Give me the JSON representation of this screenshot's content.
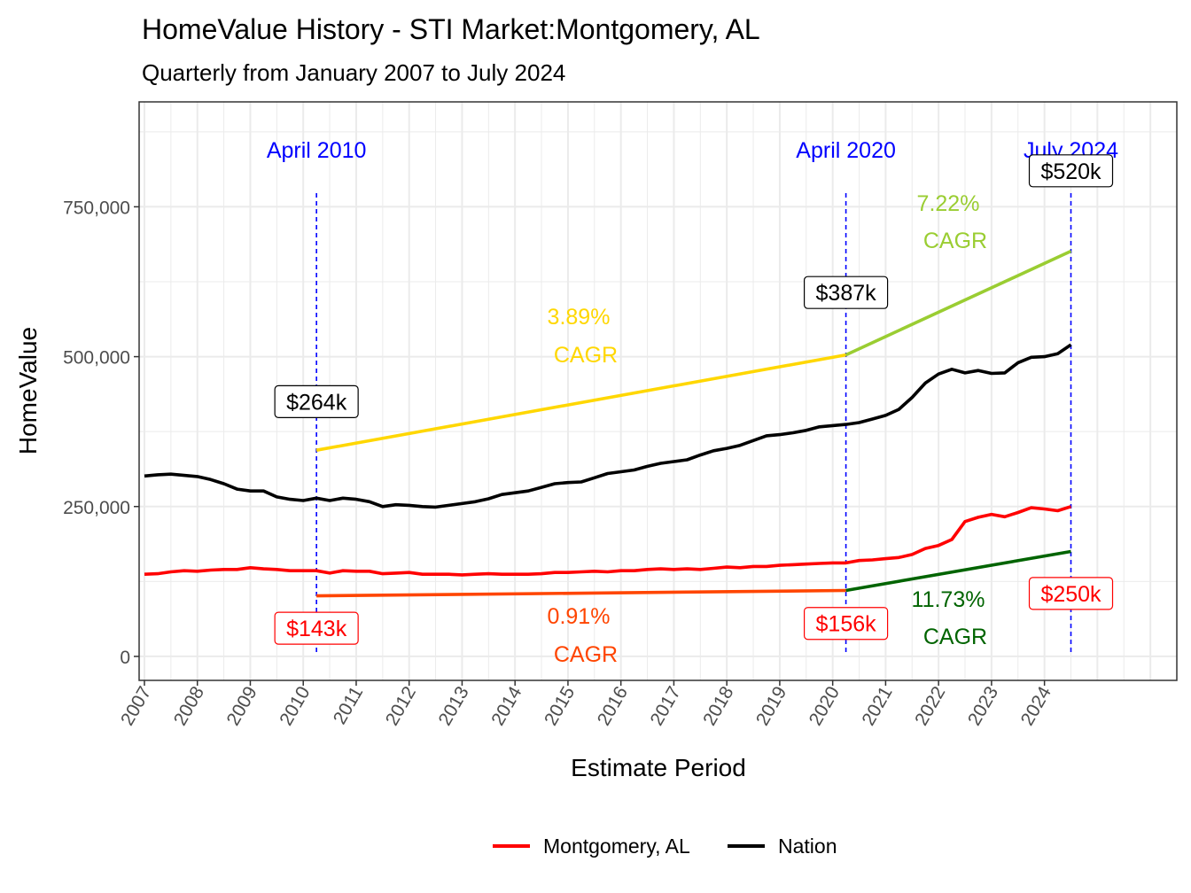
{
  "chart_data": {
    "type": "line",
    "title": "HomeValue History - STI Market:Montgomery, AL",
    "subtitle": "Quarterly from January 2007 to July 2024",
    "xlabel": "Estimate Period",
    "ylabel": "HomeValue",
    "xlim": [
      2006.9,
      2026.5
    ],
    "ylim": [
      -40000,
      925000
    ],
    "x_ticks": [
      2007,
      2008,
      2009,
      2010,
      2011,
      2012,
      2013,
      2014,
      2015,
      2016,
      2017,
      2018,
      2019,
      2020,
      2021,
      2022,
      2023,
      2024
    ],
    "x_tick_labels": [
      "2007",
      "2008",
      "2009",
      "2010",
      "2011",
      "2012",
      "2013",
      "2014",
      "2015",
      "2016",
      "2017",
      "2018",
      "2019",
      "2020",
      "2021",
      "2022",
      "2023",
      "2024"
    ],
    "y_ticks": [
      0,
      250000,
      500000,
      750000
    ],
    "y_tick_labels": [
      "0",
      "250,000",
      "500,000",
      "750,000"
    ],
    "legend_position": "bottom",
    "legend": [
      {
        "label": "Montgomery, AL",
        "color": "#ff0000"
      },
      {
        "label": "Nation",
        "color": "#000000"
      }
    ],
    "series": [
      {
        "name": "Montgomery, AL",
        "color": "#ff0000",
        "x": [
          2007.0,
          2007.25,
          2007.5,
          2007.75,
          2008.0,
          2008.25,
          2008.5,
          2008.75,
          2009.0,
          2009.25,
          2009.5,
          2009.75,
          2010.0,
          2010.25,
          2010.5,
          2010.75,
          2011.0,
          2011.25,
          2011.5,
          2011.75,
          2012.0,
          2012.25,
          2012.5,
          2012.75,
          2013.0,
          2013.25,
          2013.5,
          2013.75,
          2014.0,
          2014.25,
          2014.5,
          2014.75,
          2015.0,
          2015.25,
          2015.5,
          2015.75,
          2016.0,
          2016.25,
          2016.5,
          2016.75,
          2017.0,
          2017.25,
          2017.5,
          2017.75,
          2018.0,
          2018.25,
          2018.5,
          2018.75,
          2019.0,
          2019.25,
          2019.5,
          2019.75,
          2020.0,
          2020.25,
          2020.5,
          2020.75,
          2021.0,
          2021.25,
          2021.5,
          2021.75,
          2022.0,
          2022.25,
          2022.5,
          2022.75,
          2023.0,
          2023.25,
          2023.5,
          2023.75,
          2024.0,
          2024.25,
          2024.5
        ],
        "values": [
          137000,
          138000,
          141000,
          143000,
          142000,
          144000,
          145000,
          145000,
          148000,
          146000,
          145000,
          143000,
          143000,
          143000,
          139000,
          143000,
          142000,
          142000,
          138000,
          139000,
          140000,
          137000,
          137000,
          137000,
          136000,
          137000,
          138000,
          137000,
          137000,
          137000,
          138000,
          140000,
          140000,
          141000,
          142000,
          141000,
          143000,
          143000,
          145000,
          146000,
          145000,
          146000,
          145000,
          147000,
          149000,
          148000,
          150000,
          150000,
          152000,
          153000,
          154000,
          155000,
          156000,
          156000,
          160000,
          161000,
          163000,
          165000,
          170000,
          180000,
          185000,
          195000,
          225000,
          232000,
          237000,
          233000,
          240000,
          248000,
          246000,
          243000,
          250000
        ]
      },
      {
        "name": "Nation",
        "color": "#000000",
        "x": [
          2007.0,
          2007.25,
          2007.5,
          2007.75,
          2008.0,
          2008.25,
          2008.5,
          2008.75,
          2009.0,
          2009.25,
          2009.5,
          2009.75,
          2010.0,
          2010.25,
          2010.5,
          2010.75,
          2011.0,
          2011.25,
          2011.5,
          2011.75,
          2012.0,
          2012.25,
          2012.5,
          2012.75,
          2013.0,
          2013.25,
          2013.5,
          2013.75,
          2014.0,
          2014.25,
          2014.5,
          2014.75,
          2015.0,
          2015.25,
          2015.5,
          2015.75,
          2016.0,
          2016.25,
          2016.5,
          2016.75,
          2017.0,
          2017.25,
          2017.5,
          2017.75,
          2018.0,
          2018.25,
          2018.5,
          2018.75,
          2019.0,
          2019.25,
          2019.5,
          2019.75,
          2020.0,
          2020.25,
          2020.5,
          2020.75,
          2021.0,
          2021.25,
          2021.5,
          2021.75,
          2022.0,
          2022.25,
          2022.5,
          2022.75,
          2023.0,
          2023.25,
          2023.5,
          2023.75,
          2024.0,
          2024.25,
          2024.5
        ],
        "values": [
          301000,
          303000,
          304000,
          302000,
          300000,
          295000,
          288000,
          279000,
          276000,
          276000,
          266000,
          262000,
          260000,
          264000,
          260000,
          264000,
          262000,
          258000,
          250000,
          253000,
          252000,
          250000,
          249000,
          252000,
          255000,
          258000,
          263000,
          270000,
          273000,
          276000,
          282000,
          288000,
          290000,
          291000,
          298000,
          305000,
          308000,
          311000,
          317000,
          322000,
          325000,
          328000,
          336000,
          343000,
          347000,
          352000,
          360000,
          368000,
          370000,
          373000,
          377000,
          383000,
          385000,
          387000,
          390000,
          396000,
          402000,
          412000,
          432000,
          456000,
          471000,
          479000,
          473000,
          477000,
          472000,
          473000,
          490000,
          499000,
          500000,
          505000,
          520000
        ]
      }
    ],
    "cagr_segments": [
      {
        "label_pct": "3.89%",
        "label_word": "CAGR",
        "color": "#ffd700",
        "x": [
          2010.25,
          2020.25
        ],
        "values": [
          344000,
          503000
        ]
      },
      {
        "label_pct": "7.22%",
        "label_word": "CAGR",
        "color": "#9acd32",
        "x": [
          2020.25,
          2024.5
        ],
        "values": [
          503000,
          676000
        ]
      },
      {
        "label_pct": "0.91%",
        "label_word": "CAGR",
        "color": "#ff4500",
        "x": [
          2010.25,
          2020.25
        ],
        "values": [
          101000,
          110000
        ]
      },
      {
        "label_pct": "11.73%",
        "label_word": "CAGR",
        "color": "#006400",
        "x": [
          2020.25,
          2024.5
        ],
        "values": [
          110000,
          175000
        ]
      }
    ],
    "vlines": [
      {
        "x": 2010.25,
        "label": "April 2010"
      },
      {
        "x": 2020.25,
        "label": "April 2020"
      },
      {
        "x": 2024.5,
        "label": "July 2024"
      }
    ],
    "value_labels": [
      {
        "text": "$264k",
        "color": "#000000",
        "x": 2010.25,
        "y": 425000
      },
      {
        "text": "$387k",
        "color": "#000000",
        "x": 2020.25,
        "y": 607000
      },
      {
        "text": "$520k",
        "color": "#000000",
        "x": 2024.5,
        "y": 810000
      },
      {
        "text": "$143k",
        "color": "#ff0000",
        "x": 2010.25,
        "y": 47000
      },
      {
        "text": "$156k",
        "color": "#ff0000",
        "x": 2020.25,
        "y": 55000
      },
      {
        "text": "$250k",
        "color": "#ff0000",
        "x": 2024.5,
        "y": 105000
      }
    ]
  }
}
